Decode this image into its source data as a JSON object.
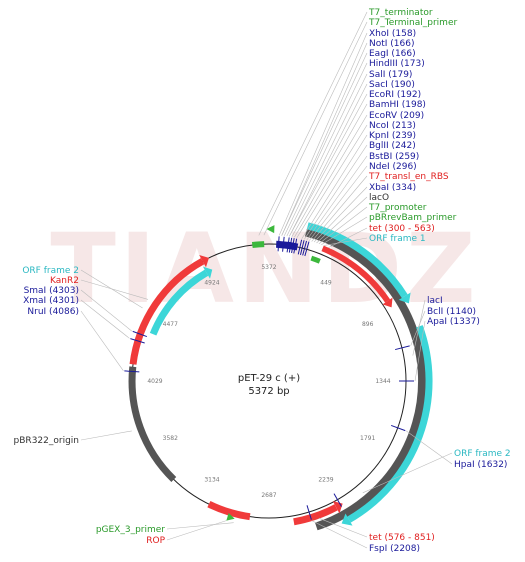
{
  "map": {
    "name": "pET-29 c (+)",
    "length": "5372 bp",
    "ticks": [
      "5372",
      "449",
      "896",
      "1344",
      "1791",
      "2239",
      "2687",
      "3134",
      "3582",
      "4029",
      "4477",
      "4924"
    ],
    "watermark": "TIANDZ"
  },
  "colors": {
    "green": "#2a9a2a",
    "red": "#e02020",
    "blue": "#1a1a9a",
    "cyan": "#3cd6d8",
    "gray": "#555555",
    "feature_red": "#f03a3a",
    "feature_green": "#3cb83c"
  },
  "labels": [
    {
      "id": "t7-terminator",
      "text": "T7_terminator",
      "color": "green"
    },
    {
      "id": "t7-terminal-primer",
      "text": "T7_Terminal_primer",
      "color": "green"
    },
    {
      "id": "xhoi",
      "text": "XhoI (158)",
      "color": "blue"
    },
    {
      "id": "noti",
      "text": "NotI (166)",
      "color": "blue"
    },
    {
      "id": "eagi",
      "text": "EagI (166)",
      "color": "blue"
    },
    {
      "id": "hindiii",
      "text": "HindIII (173)",
      "color": "blue"
    },
    {
      "id": "sali",
      "text": "SalI (179)",
      "color": "blue"
    },
    {
      "id": "saci",
      "text": "SacI (190)",
      "color": "blue"
    },
    {
      "id": "ecori",
      "text": "EcoRI (192)",
      "color": "blue"
    },
    {
      "id": "bamhi",
      "text": "BamHI (198)",
      "color": "blue"
    },
    {
      "id": "ecorv",
      "text": "EcoRV (209)",
      "color": "blue"
    },
    {
      "id": "ncoi",
      "text": "NcoI (213)",
      "color": "blue"
    },
    {
      "id": "kpni",
      "text": "KpnI (239)",
      "color": "blue"
    },
    {
      "id": "bglii",
      "text": "BglII (242)",
      "color": "blue"
    },
    {
      "id": "bstbi",
      "text": "BstBI (259)",
      "color": "blue"
    },
    {
      "id": "ndei",
      "text": "NdeI (296)",
      "color": "blue"
    },
    {
      "id": "t7-transl-en-rbs",
      "text": "T7_transl_en_RBS",
      "color": "red"
    },
    {
      "id": "xbai",
      "text": "XbaI (334)",
      "color": "blue"
    },
    {
      "id": "laco",
      "text": "lacO",
      "color": "gray"
    },
    {
      "id": "t7-promoter",
      "text": "T7_promoter",
      "color": "green"
    },
    {
      "id": "pbrrevbam-primer",
      "text": "pBRrevBam_primer",
      "color": "green"
    },
    {
      "id": "tet-300",
      "text": "tet (300 - 563)",
      "color": "red"
    },
    {
      "id": "orf-frame-1",
      "text": "ORF frame 1",
      "color": "cyan"
    },
    {
      "id": "laci",
      "text": "lacI",
      "color": "blue"
    },
    {
      "id": "bcli",
      "text": "BclI (1140)",
      "color": "blue"
    },
    {
      "id": "apai",
      "text": "ApaI (1337)",
      "color": "blue"
    },
    {
      "id": "orf-frame-2-right",
      "text": "ORF frame 2",
      "color": "cyan"
    },
    {
      "id": "hpai",
      "text": "HpaI (1632)",
      "color": "blue"
    },
    {
      "id": "tet-576",
      "text": "tet (576 - 851)",
      "color": "red"
    },
    {
      "id": "fspi",
      "text": "FspI (2208)",
      "color": "blue"
    },
    {
      "id": "pgex-3-primer",
      "text": "pGEX_3_primer",
      "color": "green"
    },
    {
      "id": "rop",
      "text": "ROP",
      "color": "red"
    },
    {
      "id": "pbr322-origin",
      "text": "pBR322_origin",
      "color": "gray"
    },
    {
      "id": "orf-frame-2-left",
      "text": "ORF frame 2",
      "color": "cyan"
    },
    {
      "id": "kanr2",
      "text": "KanR2",
      "color": "red"
    },
    {
      "id": "smai",
      "text": "SmaI (4303)",
      "color": "blue"
    },
    {
      "id": "xmai",
      "text": "XmaI (4301)",
      "color": "blue"
    },
    {
      "id": "nrui",
      "text": "NruI (4086)",
      "color": "blue"
    }
  ]
}
